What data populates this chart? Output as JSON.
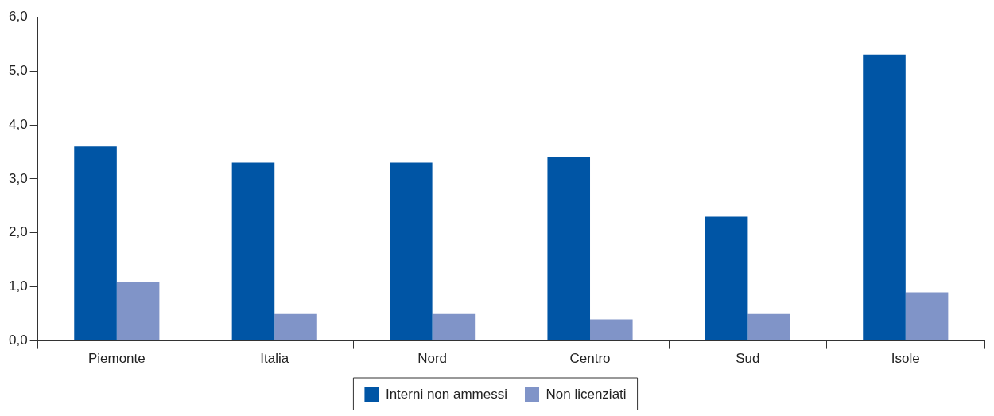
{
  "chart_data": {
    "type": "bar",
    "categories": [
      "Piemonte",
      "Italia",
      "Nord",
      "Centro",
      "Sud",
      "Isole"
    ],
    "series": [
      {
        "name": "Interni non ammessi",
        "color": "#0055a5",
        "values": [
          3.6,
          3.3,
          3.3,
          3.4,
          2.3,
          5.3
        ]
      },
      {
        "name": "Non licenziati",
        "color": "#8094c8",
        "values": [
          1.1,
          0.5,
          0.5,
          0.4,
          0.5,
          0.9
        ]
      }
    ],
    "ylim": [
      0,
      6
    ],
    "yticks": [
      {
        "value": 0,
        "label": "0,0"
      },
      {
        "value": 1,
        "label": "1,0"
      },
      {
        "value": 2,
        "label": "2,0"
      },
      {
        "value": 3,
        "label": "3,0"
      },
      {
        "value": 4,
        "label": "4,0"
      },
      {
        "value": 5,
        "label": "5,0"
      },
      {
        "value": 6,
        "label": "6,0"
      }
    ],
    "legend": "bottom"
  }
}
